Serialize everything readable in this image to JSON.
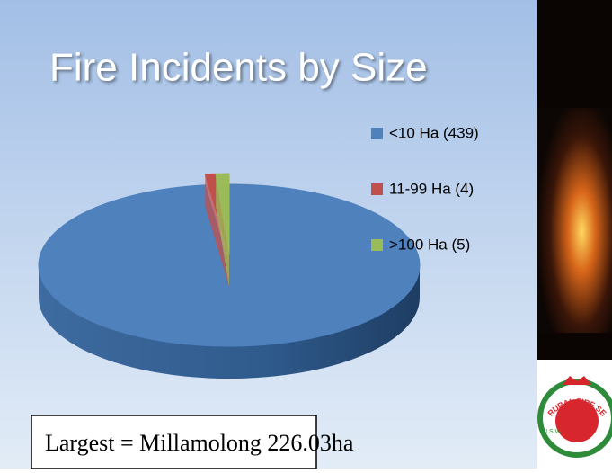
{
  "chart_data": {
    "type": "pie3d",
    "title": "Fire Incidents by Size",
    "categories": [
      "<10 Ha (439)",
      "11-99 Ha (4)",
      ">100 Ha (5)"
    ],
    "values": [
      439,
      4,
      5
    ],
    "colors": [
      "#4f81bd",
      "#c0504d",
      "#9bbb59"
    ],
    "legend": "right",
    "annotation": "Largest = Millamolong 226.03ha",
    "logo_state": "N.S.W.",
    "logo_text": "RURAL FIRE SERVICE"
  }
}
